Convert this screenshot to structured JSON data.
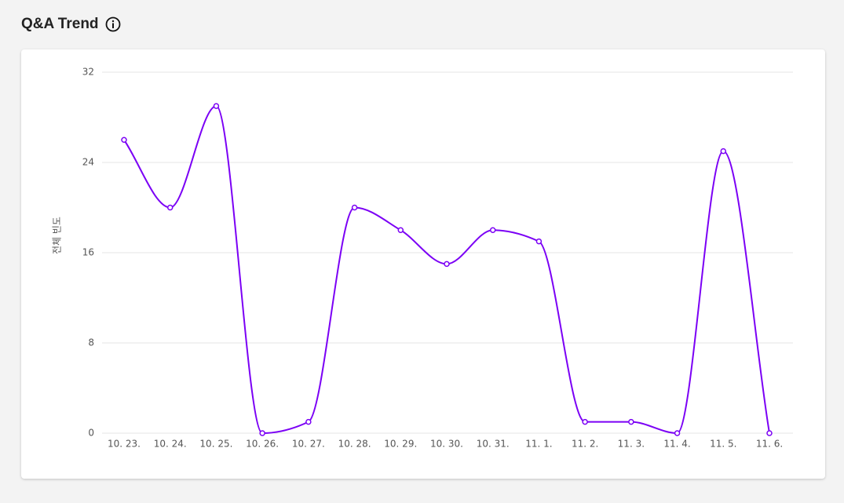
{
  "chart_data": {
    "type": "line",
    "title": "Q&A Trend",
    "ylabel": "전체 빈도",
    "categories": [
      "10. 23.",
      "10. 24.",
      "10. 25.",
      "10. 26.",
      "10. 27.",
      "10. 28.",
      "10. 29.",
      "10. 30.",
      "10. 31.",
      "11. 1.",
      "11. 2.",
      "11. 3.",
      "11. 4.",
      "11. 5.",
      "11. 6."
    ],
    "values": [
      26,
      20,
      29,
      0,
      1,
      20,
      18,
      15,
      18,
      17,
      1,
      1,
      0,
      25,
      0
    ],
    "color": "#7b00f5",
    "ylim": [
      0,
      32
    ],
    "yticks": [
      0,
      8,
      16,
      24,
      32
    ],
    "grid": true
  }
}
